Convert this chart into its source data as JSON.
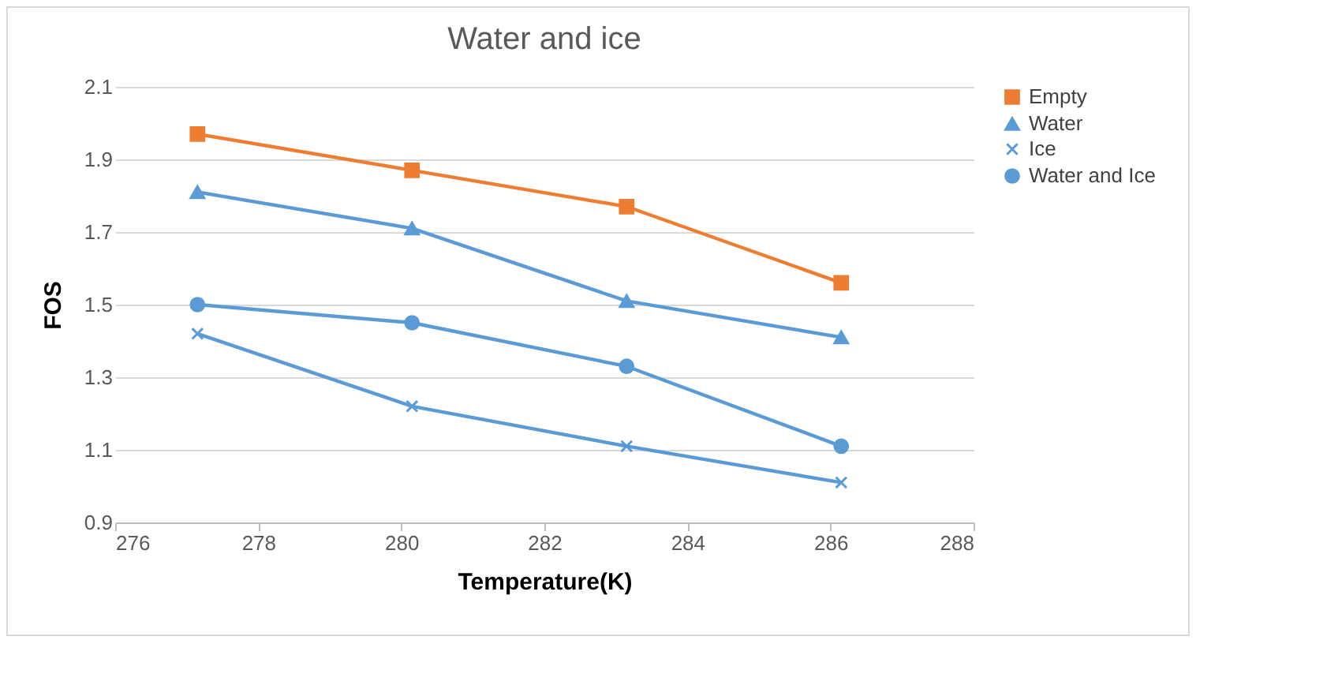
{
  "chart_data": {
    "type": "line",
    "title": "Water and ice",
    "xlabel": "Temperature(K)",
    "ylabel": "FOS",
    "x": [
      277.15,
      280.15,
      283.15,
      286.15
    ],
    "series": [
      {
        "name": "Empty",
        "color": "#ed7d31",
        "marker": "square",
        "values": [
          1.97,
          1.87,
          1.77,
          1.56
        ]
      },
      {
        "name": "Water",
        "color": "#5b9bd5",
        "marker": "triangle",
        "values": [
          1.81,
          1.71,
          1.51,
          1.41
        ]
      },
      {
        "name": "Ice",
        "color": "#5b9bd5",
        "marker": "cross",
        "values": [
          1.42,
          1.22,
          1.11,
          1.01
        ]
      },
      {
        "name": "Water and Ice",
        "color": "#5b9bd5",
        "marker": "circle",
        "values": [
          1.5,
          1.45,
          1.33,
          1.11
        ]
      }
    ],
    "xlim": [
      276,
      288
    ],
    "xticks": [
      276,
      278,
      280,
      282,
      284,
      286,
      288
    ],
    "ylim": [
      0.9,
      2.1
    ],
    "yticks": [
      0.9,
      1.1,
      1.3,
      1.5,
      1.7,
      1.9,
      2.1
    ],
    "grid": "y",
    "legend": "right"
  }
}
